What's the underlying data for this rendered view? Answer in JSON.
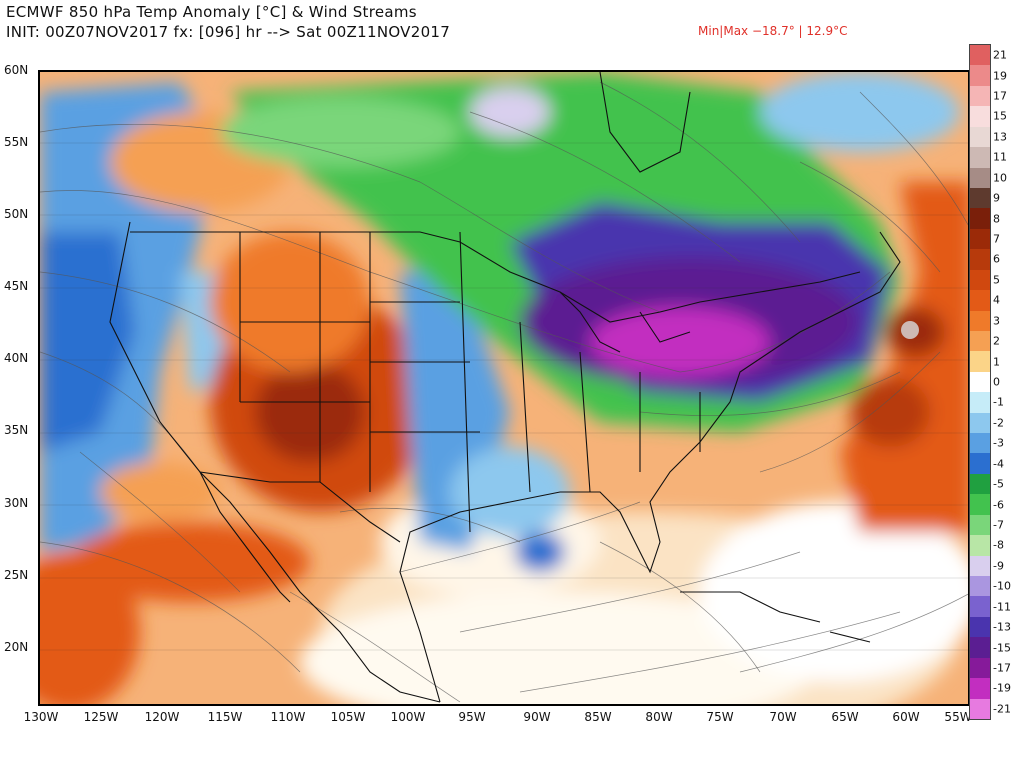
{
  "header": {
    "title_line1": "ECMWF 850 hPa Temp Anomaly [°C] & Wind Streams",
    "title_line2": "INIT: 00Z07NOV2017 fx: [096] hr --> Sat 00Z11NOV2017",
    "minmax": "Min|Max −18.7° | 12.9°C"
  },
  "map": {
    "lat_labels": [
      "60N",
      "55N",
      "50N",
      "45N",
      "40N",
      "35N",
      "30N",
      "25N",
      "20N"
    ],
    "lon_labels": [
      "130W",
      "125W",
      "120W",
      "115W",
      "110W",
      "105W",
      "100W",
      "95W",
      "90W",
      "85W",
      "80W",
      "75W",
      "70W",
      "65W",
      "60W",
      "55W"
    ]
  },
  "colorbar": {
    "labels": [
      "21",
      "19",
      "17",
      "15",
      "13",
      "11",
      "10",
      "9",
      "8",
      "7",
      "6",
      "5",
      "4",
      "3",
      "2",
      "1",
      "0",
      "-1",
      "-2",
      "-3",
      "-4",
      "-5",
      "-6",
      "-7",
      "-8",
      "-9",
      "-10",
      "-11",
      "-13",
      "-15",
      "-17",
      "-19",
      "-21"
    ],
    "colors": [
      "#e06060",
      "#ec8a8a",
      "#f5b5b5",
      "#f8dddd",
      "#e8d8d4",
      "#cdb9b4",
      "#a68c86",
      "#5e3a2e",
      "#7a1f0a",
      "#9b2a08",
      "#b73a0c",
      "#d0480f",
      "#e35a17",
      "#ef7a2a",
      "#f5a053",
      "#fbd488",
      "#ffffff",
      "#c6ecf8",
      "#8dc8ee",
      "#5aa0e2",
      "#2b6fd0",
      "#20a040",
      "#42c24e",
      "#7ad67a",
      "#b8e6a6",
      "#d9cfee",
      "#aa96e0",
      "#7a62cf",
      "#4a34ae",
      "#5b1e92",
      "#861a9a",
      "#c22ec0",
      "#e77ae0"
    ]
  }
}
